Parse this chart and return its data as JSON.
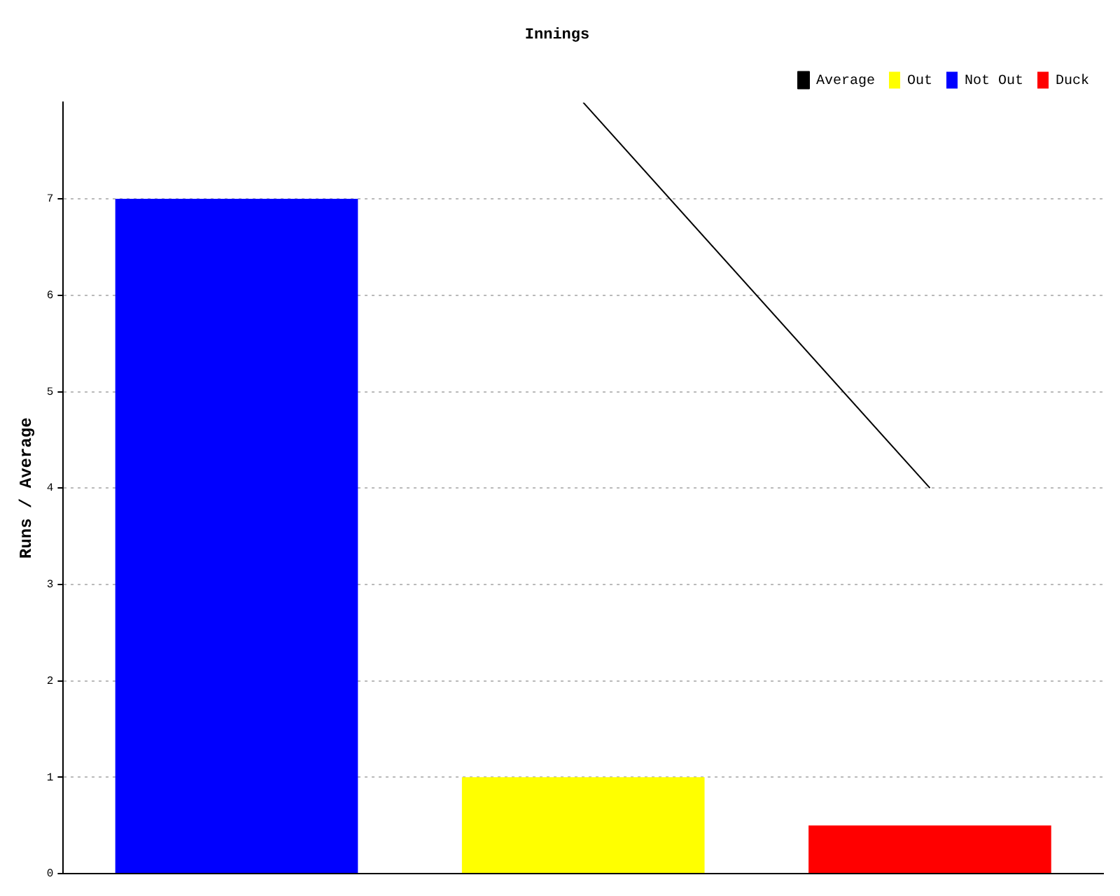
{
  "chart_data": {
    "type": "bar",
    "title": "Innings",
    "ylabel": "Runs / Average",
    "categories": [
      null,
      null,
      null
    ],
    "stacked": true,
    "series": [
      {
        "name": "Average",
        "type": "line",
        "color": "#000000",
        "values": [
          null,
          8,
          4
        ]
      },
      {
        "name": "Out",
        "color": "#ffff00",
        "values": [
          null,
          1,
          null
        ]
      },
      {
        "name": "Not Out",
        "color": "#0000ff",
        "values": [
          7,
          null,
          null
        ]
      },
      {
        "name": "Duck",
        "color": "#ff0000",
        "values": [
          null,
          null,
          0.5
        ]
      }
    ],
    "ylim": [
      0,
      8
    ],
    "yticks": [
      0,
      1,
      2,
      3,
      4,
      5,
      6,
      7
    ],
    "grid": "y",
    "legend": "top right",
    "marker": "none"
  }
}
